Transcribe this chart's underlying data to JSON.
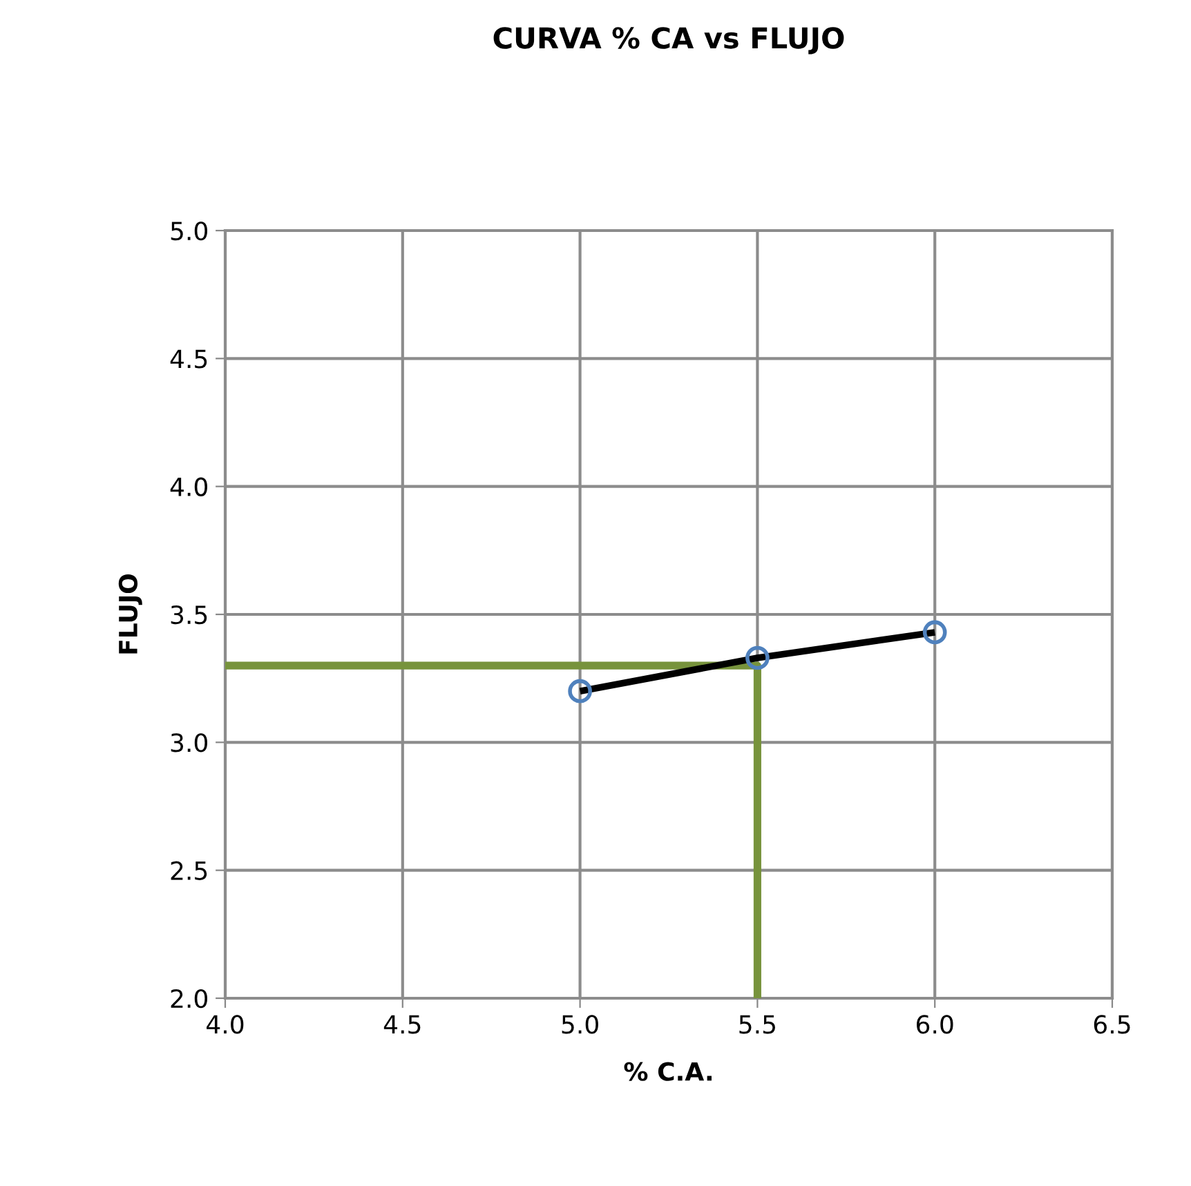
{
  "chart_data": {
    "type": "line",
    "title": "CURVA % CA vs FLUJO",
    "xlabel": "% C.A.",
    "ylabel": "FLUJO",
    "series": [
      {
        "color": "#77933c",
        "x": [
          4.0,
          5.5,
          5.5
        ],
        "values": [
          3.3,
          3.3,
          2.0
        ],
        "marker": "none"
      },
      {
        "color": "#000000",
        "x": [
          5.0,
          5.5,
          6.0
        ],
        "values": [
          3.2,
          3.33,
          3.43
        ],
        "marker": "none"
      },
      {
        "type": "scatter",
        "color": "#4f81bd",
        "x": [
          5.0,
          5.5,
          6.0
        ],
        "values": [
          3.2,
          3.33,
          3.43
        ],
        "marker": "circle"
      }
    ],
    "xlim": [
      4.0,
      6.5
    ],
    "xticks": [
      {
        "value": 4.0,
        "label": "4.0"
      },
      {
        "value": 4.5,
        "label": "4.5"
      },
      {
        "value": 5.0,
        "label": "5.0"
      },
      {
        "value": 5.5,
        "label": "5.5"
      },
      {
        "value": 6.0,
        "label": "6.0"
      },
      {
        "value": 6.5,
        "label": "6.5"
      }
    ],
    "ylim": [
      2.0,
      5.0
    ],
    "yticks": [
      {
        "value": 2.0,
        "label": "2.0"
      },
      {
        "value": 2.5,
        "label": "2.5"
      },
      {
        "value": 3.0,
        "label": "3.0"
      },
      {
        "value": 3.5,
        "label": "3.5"
      },
      {
        "value": 4.0,
        "label": "4.0"
      },
      {
        "value": 4.5,
        "label": "4.5"
      },
      {
        "value": 5.0,
        "label": "5.0"
      }
    ],
    "grid": true,
    "legend": false
  }
}
